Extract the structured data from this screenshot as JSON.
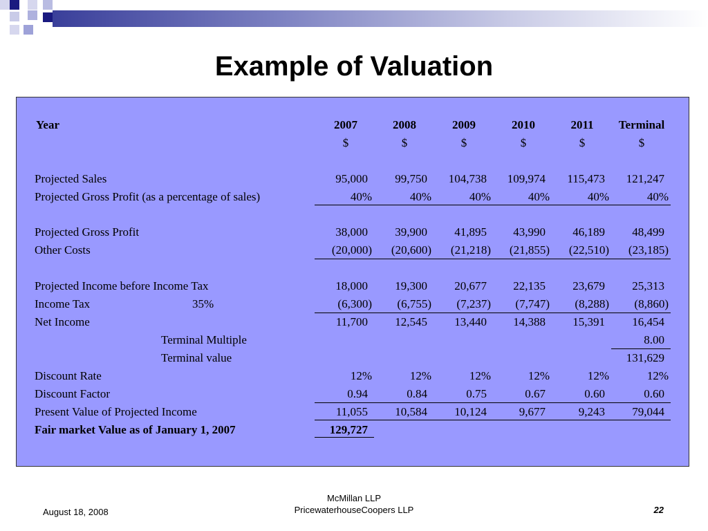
{
  "title": "Example of Valuation",
  "columns": {
    "label": "Year",
    "years": [
      "2007",
      "2008",
      "2009",
      "2010",
      "2011",
      "Terminal"
    ],
    "currency": [
      "$",
      "$",
      "$",
      "$",
      "$",
      "$"
    ]
  },
  "rows": {
    "projected_sales": {
      "label": "Projected Sales",
      "values": [
        "95,000",
        "99,750",
        "104,738",
        "109,974",
        "115,473",
        "121,247"
      ]
    },
    "gp_pct": {
      "label": "Projected Gross Profit (as a percentage of sales)",
      "values": [
        "40%",
        "40%",
        "40%",
        "40%",
        "40%",
        "40%"
      ]
    },
    "gross_profit": {
      "label": "Projected Gross Profit",
      "values": [
        "38,000",
        "39,900",
        "41,895",
        "43,990",
        "46,189",
        "48,499"
      ]
    },
    "other_costs": {
      "label": "Other Costs",
      "values": [
        "(20,000)",
        "(20,600)",
        "(21,218)",
        "(21,855)",
        "(22,510)",
        "(23,185)"
      ]
    },
    "income_before_tax": {
      "label": "Projected Income before Income Tax",
      "values": [
        "18,000",
        "19,300",
        "20,677",
        "22,135",
        "23,679",
        "25,313"
      ]
    },
    "income_tax": {
      "label": "Income Tax",
      "rate": "35%",
      "values": [
        "(6,300)",
        "(6,755)",
        "(7,237)",
        "(7,747)",
        "(8,288)",
        "(8,860)"
      ]
    },
    "net_income": {
      "label": "Net Income",
      "values": [
        "11,700",
        "12,545",
        "13,440",
        "14,388",
        "15,391",
        "16,454"
      ]
    },
    "terminal_multiple": {
      "label": "Terminal Multiple",
      "value": "8.00"
    },
    "terminal_value": {
      "label": "Terminal value",
      "value": "131,629"
    },
    "discount_rate": {
      "label": "Discount Rate",
      "values": [
        "12%",
        "12%",
        "12%",
        "12%",
        "12%",
        "12%"
      ]
    },
    "discount_factor": {
      "label": "Discount Factor",
      "values": [
        "0.94",
        "0.84",
        "0.75",
        "0.67",
        "0.60",
        "0.60"
      ]
    },
    "present_value": {
      "label": "Present Value of Projected Income",
      "values": [
        "11,055",
        "10,584",
        "10,124",
        "9,677",
        "9,243",
        "79,044"
      ]
    },
    "fair_market_value": {
      "label": "Fair market Value as of January 1, 2007",
      "value": "129,727"
    }
  },
  "footer": {
    "date": "August 18, 2008",
    "firm_line1": "McMillan LLP",
    "firm_line2": "PricewaterhouseCoopers LLP",
    "page_number": "22"
  },
  "colors": {
    "panel_background": "#9999ff",
    "decor_dark": "#1a1a80",
    "decor_light": "#9ea2d8"
  }
}
